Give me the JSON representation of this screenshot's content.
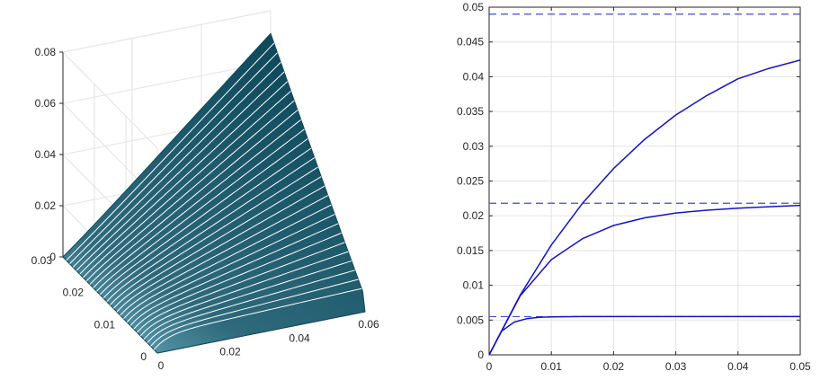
{
  "chart_data": [
    {
      "type": "surface",
      "x_ticks": [
        "0",
        "0.02",
        "0.04",
        "0.06"
      ],
      "y_ticks": [
        "0",
        "0.01",
        "0.02",
        "0.03"
      ],
      "z_ticks": [
        "0",
        "0.02",
        "0.04",
        "0.06",
        "0.08"
      ],
      "xlim": [
        0,
        0.06
      ],
      "ylim": [
        0,
        0.03
      ],
      "zlim": [
        0,
        0.08
      ],
      "z_at_corners": {
        "x0_y0": 0,
        "xmax_y0": 0.006,
        "x0_ymax": 0,
        "xmax_ymax": 0.08
      },
      "surface_color": "#0f4a5c",
      "highlight_color": "#6fb4c6",
      "line_color": "#ffffff",
      "grid": true
    },
    {
      "type": "line",
      "x_ticks": [
        "0",
        "0.01",
        "0.02",
        "0.03",
        "0.04",
        "0.05"
      ],
      "y_ticks": [
        "0",
        "0.005",
        "0.01",
        "0.015",
        "0.02",
        "0.025",
        "0.03",
        "0.035",
        "0.04",
        "0.045",
        "0.05"
      ],
      "xlim": [
        0,
        0.05
      ],
      "ylim": [
        0,
        0.05
      ],
      "grid": true,
      "series": [
        {
          "values": [
            [
              0,
              0
            ],
            [
              0.002,
              0.0034
            ],
            [
              0.004,
              0.0047
            ],
            [
              0.006,
              0.0052
            ],
            [
              0.008,
              0.0054
            ],
            [
              0.01,
              0.00545
            ],
            [
              0.015,
              0.0055
            ],
            [
              0.02,
              0.0055
            ],
            [
              0.03,
              0.0055
            ],
            [
              0.04,
              0.0055
            ],
            [
              0.05,
              0.0055
            ]
          ],
          "asymptote": 0.0055
        },
        {
          "values": [
            [
              0,
              0
            ],
            [
              0.005,
              0.0085
            ],
            [
              0.01,
              0.0137
            ],
            [
              0.015,
              0.0167
            ],
            [
              0.02,
              0.0186
            ],
            [
              0.025,
              0.0197
            ],
            [
              0.03,
              0.0204
            ],
            [
              0.035,
              0.0208
            ],
            [
              0.04,
              0.0211
            ],
            [
              0.045,
              0.0213
            ],
            [
              0.05,
              0.0215
            ]
          ],
          "asymptote": 0.0218
        },
        {
          "values": [
            [
              0,
              0
            ],
            [
              0.005,
              0.0086
            ],
            [
              0.01,
              0.0158
            ],
            [
              0.015,
              0.0218
            ],
            [
              0.02,
              0.0268
            ],
            [
              0.025,
              0.031
            ],
            [
              0.03,
              0.0345
            ],
            [
              0.035,
              0.0373
            ],
            [
              0.04,
              0.0397
            ],
            [
              0.045,
              0.0412
            ],
            [
              0.05,
              0.0424
            ]
          ],
          "asymptote": 0.049
        }
      ],
      "line_color": "#1414c8",
      "dashed_color": "#3c4fd0"
    }
  ]
}
